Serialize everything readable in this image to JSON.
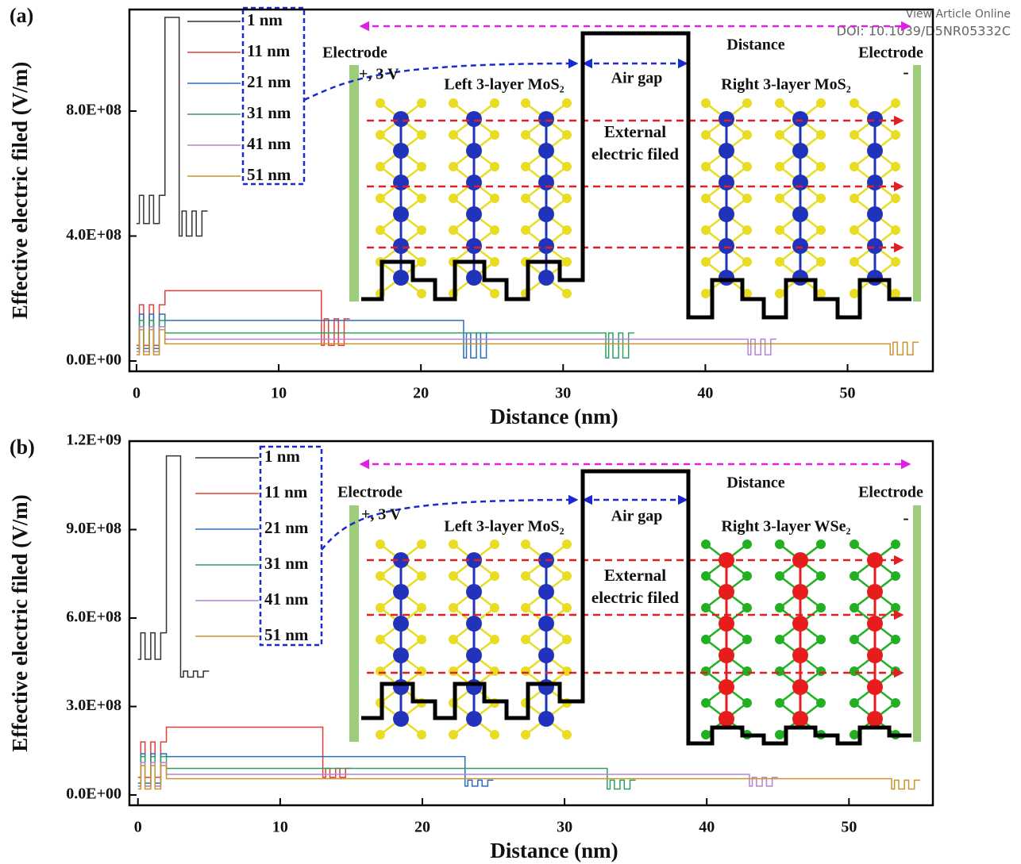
{
  "header": {
    "link": "View Article Online",
    "doi": "DOI: 10.1039/D5NR05332C"
  },
  "chart_data": [
    {
      "type": "line",
      "panel": "(a)",
      "x_label": "Distance (nm)",
      "y_label": "Effective electric filed (V/m)",
      "xlim": [
        -0.5,
        56
      ],
      "xticks": [
        0,
        10,
        20,
        30,
        40,
        50
      ],
      "ylim": [
        -33000000,
        1125000000
      ],
      "yticks": [
        {
          "value": 0,
          "label": "0.0E+00"
        },
        {
          "value": 400000000,
          "label": "4.0E+08"
        },
        {
          "value": 800000000,
          "label": "8.0E+08"
        }
      ],
      "annotations": [
        "Electrode",
        "Electrode",
        "+, 3 V",
        "-",
        "Left 3-layer MoS₂",
        "Air gap",
        "Right 3-layer MoS₂",
        "Distance",
        "External",
        "electric filed"
      ],
      "series": [
        {
          "name": "1 nm",
          "color": "#333333",
          "x": [
            0,
            0.2,
            0.2,
            0.5,
            0.5,
            0.9,
            0.9,
            1.2,
            1.2,
            1.6,
            1.6,
            2,
            2,
            3,
            3,
            3.2,
            3.2,
            3.5,
            3.5,
            3.9,
            3.9,
            4.2,
            4.2,
            4.6,
            4.6,
            5
          ],
          "values": [
            440000000.0,
            440000000.0,
            530000000.0,
            530000000.0,
            440000000.0,
            440000000.0,
            530000000.0,
            530000000.0,
            440000000.0,
            440000000.0,
            530000000.0,
            530000000.0,
            1100000000.0,
            1100000000.0,
            400000000.0,
            400000000.0,
            480000000.0,
            480000000.0,
            400000000.0,
            400000000.0,
            480000000.0,
            480000000.0,
            400000000.0,
            400000000.0,
            480000000.0,
            480000000.0
          ]
        },
        {
          "name": "11 nm",
          "color": "#e0403a",
          "x": [
            0,
            0.2,
            0.2,
            0.5,
            0.5,
            0.9,
            0.9,
            1.2,
            1.2,
            1.6,
            1.6,
            2,
            2,
            13,
            13,
            13.2,
            13.2,
            13.5,
            13.5,
            13.9,
            13.9,
            14.2,
            14.2,
            14.6,
            14.6,
            15
          ],
          "values": [
            50000000.0,
            50000000.0,
            180000000.0,
            180000000.0,
            50000000.0,
            50000000.0,
            180000000.0,
            180000000.0,
            50000000.0,
            50000000.0,
            180000000.0,
            180000000.0,
            225000000.0,
            225000000.0,
            50000000.0,
            50000000.0,
            135000000.0,
            135000000.0,
            50000000.0,
            50000000.0,
            135000000.0,
            135000000.0,
            50000000.0,
            50000000.0,
            135000000.0,
            135000000.0
          ]
        },
        {
          "name": "21 nm",
          "color": "#2a6fbe",
          "x": [
            0,
            0.2,
            0.2,
            0.5,
            0.5,
            0.9,
            0.9,
            1.2,
            1.2,
            1.6,
            1.6,
            2,
            2,
            23,
            23,
            23.2,
            23.2,
            23.5,
            23.5,
            23.9,
            23.9,
            24.2,
            24.2,
            24.6,
            24.6,
            25
          ],
          "values": [
            40000000.0,
            40000000.0,
            150000000.0,
            150000000.0,
            40000000.0,
            40000000.0,
            150000000.0,
            150000000.0,
            40000000.0,
            40000000.0,
            150000000.0,
            150000000.0,
            130000000.0,
            130000000.0,
            10000000.0,
            10000000.0,
            90000000.0,
            90000000.0,
            10000000.0,
            10000000.0,
            90000000.0,
            90000000.0,
            10000000.0,
            10000000.0,
            90000000.0,
            90000000.0
          ]
        },
        {
          "name": "31 nm",
          "color": "#2f9e63",
          "x": [
            0,
            0.2,
            0.2,
            0.5,
            0.5,
            0.9,
            0.9,
            1.2,
            1.2,
            1.6,
            1.6,
            2,
            2,
            33,
            33,
            33.2,
            33.2,
            33.5,
            33.5,
            33.9,
            33.9,
            34.2,
            34.2,
            34.6,
            34.6,
            35
          ],
          "values": [
            30000000.0,
            30000000.0,
            130000000.0,
            130000000.0,
            30000000.0,
            30000000.0,
            130000000.0,
            130000000.0,
            30000000.0,
            30000000.0,
            130000000.0,
            130000000.0,
            90000000.0,
            90000000.0,
            10000000.0,
            10000000.0,
            90000000.0,
            90000000.0,
            10000000.0,
            10000000.0,
            90000000.0,
            90000000.0,
            10000000.0,
            10000000.0,
            90000000.0,
            90000000.0
          ]
        },
        {
          "name": "41 nm",
          "color": "#b383d4",
          "x": [
            0,
            0.2,
            0.2,
            0.5,
            0.5,
            0.9,
            0.9,
            1.2,
            1.2,
            1.6,
            1.6,
            2,
            2,
            43,
            43,
            43.2,
            43.2,
            43.5,
            43.5,
            43.9,
            43.9,
            44.2,
            44.2,
            44.6,
            44.6,
            45
          ],
          "values": [
            30000000.0,
            30000000.0,
            110000000.0,
            110000000.0,
            30000000.0,
            30000000.0,
            110000000.0,
            110000000.0,
            30000000.0,
            30000000.0,
            110000000.0,
            110000000.0,
            70000000.0,
            70000000.0,
            20000000.0,
            20000000.0,
            70000000.0,
            70000000.0,
            20000000.0,
            20000000.0,
            70000000.0,
            70000000.0,
            20000000.0,
            20000000.0,
            70000000.0,
            70000000.0
          ]
        },
        {
          "name": "51 nm",
          "color": "#c9952a",
          "x": [
            0,
            0.2,
            0.2,
            0.5,
            0.5,
            0.9,
            0.9,
            1.2,
            1.2,
            1.6,
            1.6,
            2,
            2,
            53,
            53,
            53.2,
            53.2,
            53.5,
            53.5,
            53.9,
            53.9,
            54.2,
            54.2,
            54.6,
            54.6,
            55
          ],
          "values": [
            20000000.0,
            20000000.0,
            100000000.0,
            100000000.0,
            20000000.0,
            20000000.0,
            100000000.0,
            100000000.0,
            20000000.0,
            20000000.0,
            100000000.0,
            100000000.0,
            55000000.0,
            55000000.0,
            20000000.0,
            20000000.0,
            60000000.0,
            60000000.0,
            20000000.0,
            20000000.0,
            60000000.0,
            60000000.0,
            20000000.0,
            20000000.0,
            60000000.0,
            60000000.0
          ]
        }
      ]
    },
    {
      "type": "line",
      "panel": "(b)",
      "x_label": "Distance (nm)",
      "y_label": "Effective electric filed (V/m)",
      "xlim": [
        -0.6,
        55.9
      ],
      "xticks": [
        0,
        10,
        20,
        30,
        40,
        50
      ],
      "ylim": [
        -35000000,
        1200000000
      ],
      "yticks": [
        {
          "value": 0,
          "label": "0.0E+00"
        },
        {
          "value": 300000000,
          "label": "3.0E+08"
        },
        {
          "value": 600000000,
          "label": "6.0E+08"
        },
        {
          "value": 900000000,
          "label": "9.0E+08"
        },
        {
          "value": 1200000000,
          "label": "1.2E+09"
        }
      ],
      "annotations": [
        "Electrode",
        "Electrode",
        "+, 3 V",
        "-",
        "Left 3-layer MoS₂",
        "Air gap",
        "Right 3-layer WSe₂",
        "Distance",
        "External",
        "electric filed"
      ],
      "series": [
        {
          "name": "1 nm",
          "color": "#333333",
          "x": [
            0,
            0.2,
            0.2,
            0.5,
            0.5,
            0.9,
            0.9,
            1.2,
            1.2,
            1.6,
            1.6,
            2,
            2,
            3,
            3,
            3.2,
            3.2,
            3.5,
            3.5,
            3.9,
            3.9,
            4.2,
            4.2,
            4.6,
            4.6,
            5
          ],
          "values": [
            460000000.0,
            460000000.0,
            550000000.0,
            550000000.0,
            460000000.0,
            460000000.0,
            550000000.0,
            550000000.0,
            460000000.0,
            460000000.0,
            550000000.0,
            550000000.0,
            1150000000.0,
            1150000000.0,
            400000000.0,
            400000000.0,
            420000000.0,
            420000000.0,
            400000000.0,
            400000000.0,
            420000000.0,
            420000000.0,
            400000000.0,
            400000000.0,
            420000000.0,
            420000000.0
          ]
        },
        {
          "name": "11 nm",
          "color": "#e0403a",
          "x": [
            0,
            0.2,
            0.2,
            0.5,
            0.5,
            0.9,
            0.9,
            1.2,
            1.2,
            1.6,
            1.6,
            2,
            2,
            13,
            13,
            13.2,
            13.2,
            13.5,
            13.5,
            13.9,
            13.9,
            14.2,
            14.2,
            14.6,
            14.6,
            15
          ],
          "values": [
            60000000.0,
            60000000.0,
            180000000.0,
            180000000.0,
            60000000.0,
            60000000.0,
            180000000.0,
            180000000.0,
            60000000.0,
            60000000.0,
            180000000.0,
            180000000.0,
            230000000.0,
            230000000.0,
            60000000.0,
            60000000.0,
            90000000.0,
            90000000.0,
            60000000.0,
            60000000.0,
            90000000.0,
            90000000.0,
            60000000.0,
            60000000.0,
            90000000.0,
            90000000.0
          ]
        },
        {
          "name": "21 nm",
          "color": "#2a6fbe",
          "x": [
            0,
            0.2,
            0.2,
            0.5,
            0.5,
            0.9,
            0.9,
            1.2,
            1.2,
            1.6,
            1.6,
            2,
            2,
            23,
            23,
            23.2,
            23.2,
            23.5,
            23.5,
            23.9,
            23.9,
            24.2,
            24.2,
            24.6,
            24.6,
            25
          ],
          "values": [
            40000000.0,
            40000000.0,
            140000000.0,
            140000000.0,
            40000000.0,
            40000000.0,
            140000000.0,
            140000000.0,
            40000000.0,
            40000000.0,
            140000000.0,
            140000000.0,
            130000000.0,
            130000000.0,
            30000000.0,
            30000000.0,
            50000000.0,
            50000000.0,
            30000000.0,
            30000000.0,
            50000000.0,
            50000000.0,
            30000000.0,
            30000000.0,
            50000000.0,
            50000000.0
          ]
        },
        {
          "name": "31 nm",
          "color": "#2f9e63",
          "x": [
            0,
            0.2,
            0.2,
            0.5,
            0.5,
            0.9,
            0.9,
            1.2,
            1.2,
            1.6,
            1.6,
            2,
            2,
            33,
            33,
            33.2,
            33.2,
            33.5,
            33.5,
            33.9,
            33.9,
            34.2,
            34.2,
            34.6,
            34.6,
            35
          ],
          "values": [
            30000000.0,
            30000000.0,
            130000000.0,
            130000000.0,
            30000000.0,
            30000000.0,
            130000000.0,
            130000000.0,
            30000000.0,
            30000000.0,
            130000000.0,
            130000000.0,
            90000000.0,
            90000000.0,
            20000000.0,
            20000000.0,
            50000000.0,
            50000000.0,
            20000000.0,
            20000000.0,
            50000000.0,
            50000000.0,
            20000000.0,
            20000000.0,
            50000000.0,
            50000000.0
          ]
        },
        {
          "name": "41 nm",
          "color": "#b383d4",
          "x": [
            0,
            0.2,
            0.2,
            0.5,
            0.5,
            0.9,
            0.9,
            1.2,
            1.2,
            1.6,
            1.6,
            2,
            2,
            43,
            43,
            43.2,
            43.2,
            43.5,
            43.5,
            43.9,
            43.9,
            44.2,
            44.2,
            44.6,
            44.6,
            45
          ],
          "values": [
            30000000.0,
            30000000.0,
            110000000.0,
            110000000.0,
            30000000.0,
            30000000.0,
            110000000.0,
            110000000.0,
            30000000.0,
            30000000.0,
            110000000.0,
            110000000.0,
            70000000.0,
            70000000.0,
            30000000.0,
            30000000.0,
            60000000.0,
            60000000.0,
            30000000.0,
            30000000.0,
            60000000.0,
            60000000.0,
            30000000.0,
            30000000.0,
            60000000.0,
            60000000.0
          ]
        },
        {
          "name": "51 nm",
          "color": "#c9952a",
          "x": [
            0,
            0.2,
            0.2,
            0.5,
            0.5,
            0.9,
            0.9,
            1.2,
            1.2,
            1.6,
            1.6,
            2,
            2,
            53,
            53,
            53.2,
            53.2,
            53.5,
            53.5,
            53.9,
            53.9,
            54.2,
            54.2,
            54.6,
            54.6,
            55
          ],
          "values": [
            20000000.0,
            20000000.0,
            100000000.0,
            100000000.0,
            20000000.0,
            20000000.0,
            100000000.0,
            100000000.0,
            20000000.0,
            20000000.0,
            100000000.0,
            100000000.0,
            55000000.0,
            55000000.0,
            20000000.0,
            20000000.0,
            50000000.0,
            50000000.0,
            20000000.0,
            20000000.0,
            50000000.0,
            50000000.0,
            20000000.0,
            20000000.0,
            50000000.0,
            50000000.0
          ]
        }
      ]
    }
  ]
}
